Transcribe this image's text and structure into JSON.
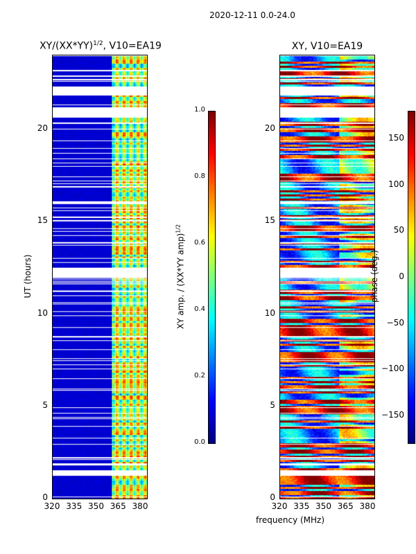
{
  "suptitle": "2020-12-11 0.0-24.0",
  "chart_data": [
    {
      "type": "heatmap",
      "title": "XY/(XX*YY)^1/2, V10=EA19",
      "title_main": "XY/(XX*YY)",
      "title_sup": "1/2",
      "title_tail": ", V10=EA19",
      "xlabel": "",
      "ylabel": "UT (hours)",
      "xlim": [
        320,
        385
      ],
      "ylim": [
        0,
        24
      ],
      "xticks": [
        320,
        335,
        350,
        365,
        380
      ],
      "yticks": [
        0,
        5,
        10,
        15,
        20
      ],
      "colorbar": {
        "label": "XY amp. / (XX*YY amp)^1/2",
        "label_main": "XY amp. / (XX*YY amp)",
        "label_sup": "1/2",
        "range": [
          0,
          1
        ],
        "ticks": [
          "0.0",
          "0.2",
          "0.4",
          "0.6",
          "0.8",
          "1.0"
        ],
        "cmap": "jet"
      },
      "description_values": {
        "background_320_360MHz": 0.05,
        "band_360_385MHz": [
          0.35,
          0.7
        ]
      },
      "flagged_hours": [
        [
          1.25,
          1.55
        ],
        [
          12.0,
          12.55
        ],
        [
          20.7,
          21.25
        ],
        [
          21.9,
          22.4
        ],
        [
          22.9,
          23.0
        ],
        [
          23.2,
          23.3
        ]
      ]
    },
    {
      "type": "heatmap",
      "title": "XY, V10=EA19",
      "xlabel": "frequency (MHz)",
      "ylabel": "",
      "xlim": [
        320,
        385
      ],
      "ylim": [
        0,
        24
      ],
      "xticks": [
        320,
        335,
        350,
        365,
        380
      ],
      "yticks": [
        0,
        5,
        10,
        15,
        20
      ],
      "colorbar": {
        "label": "phase (deg.)",
        "range": [
          -180,
          180
        ],
        "ticks": [
          "−150",
          "−100",
          "−50",
          "0",
          "50",
          "100",
          "150"
        ],
        "tick_values": [
          -150,
          -100,
          -50,
          0,
          50,
          100,
          150
        ],
        "cmap": "jet"
      },
      "flagged_hours": [
        [
          1.25,
          1.55
        ],
        [
          12.0,
          12.55
        ],
        [
          20.7,
          21.25
        ],
        [
          21.9,
          22.4
        ],
        [
          22.9,
          23.0
        ],
        [
          23.2,
          23.3
        ]
      ]
    }
  ]
}
